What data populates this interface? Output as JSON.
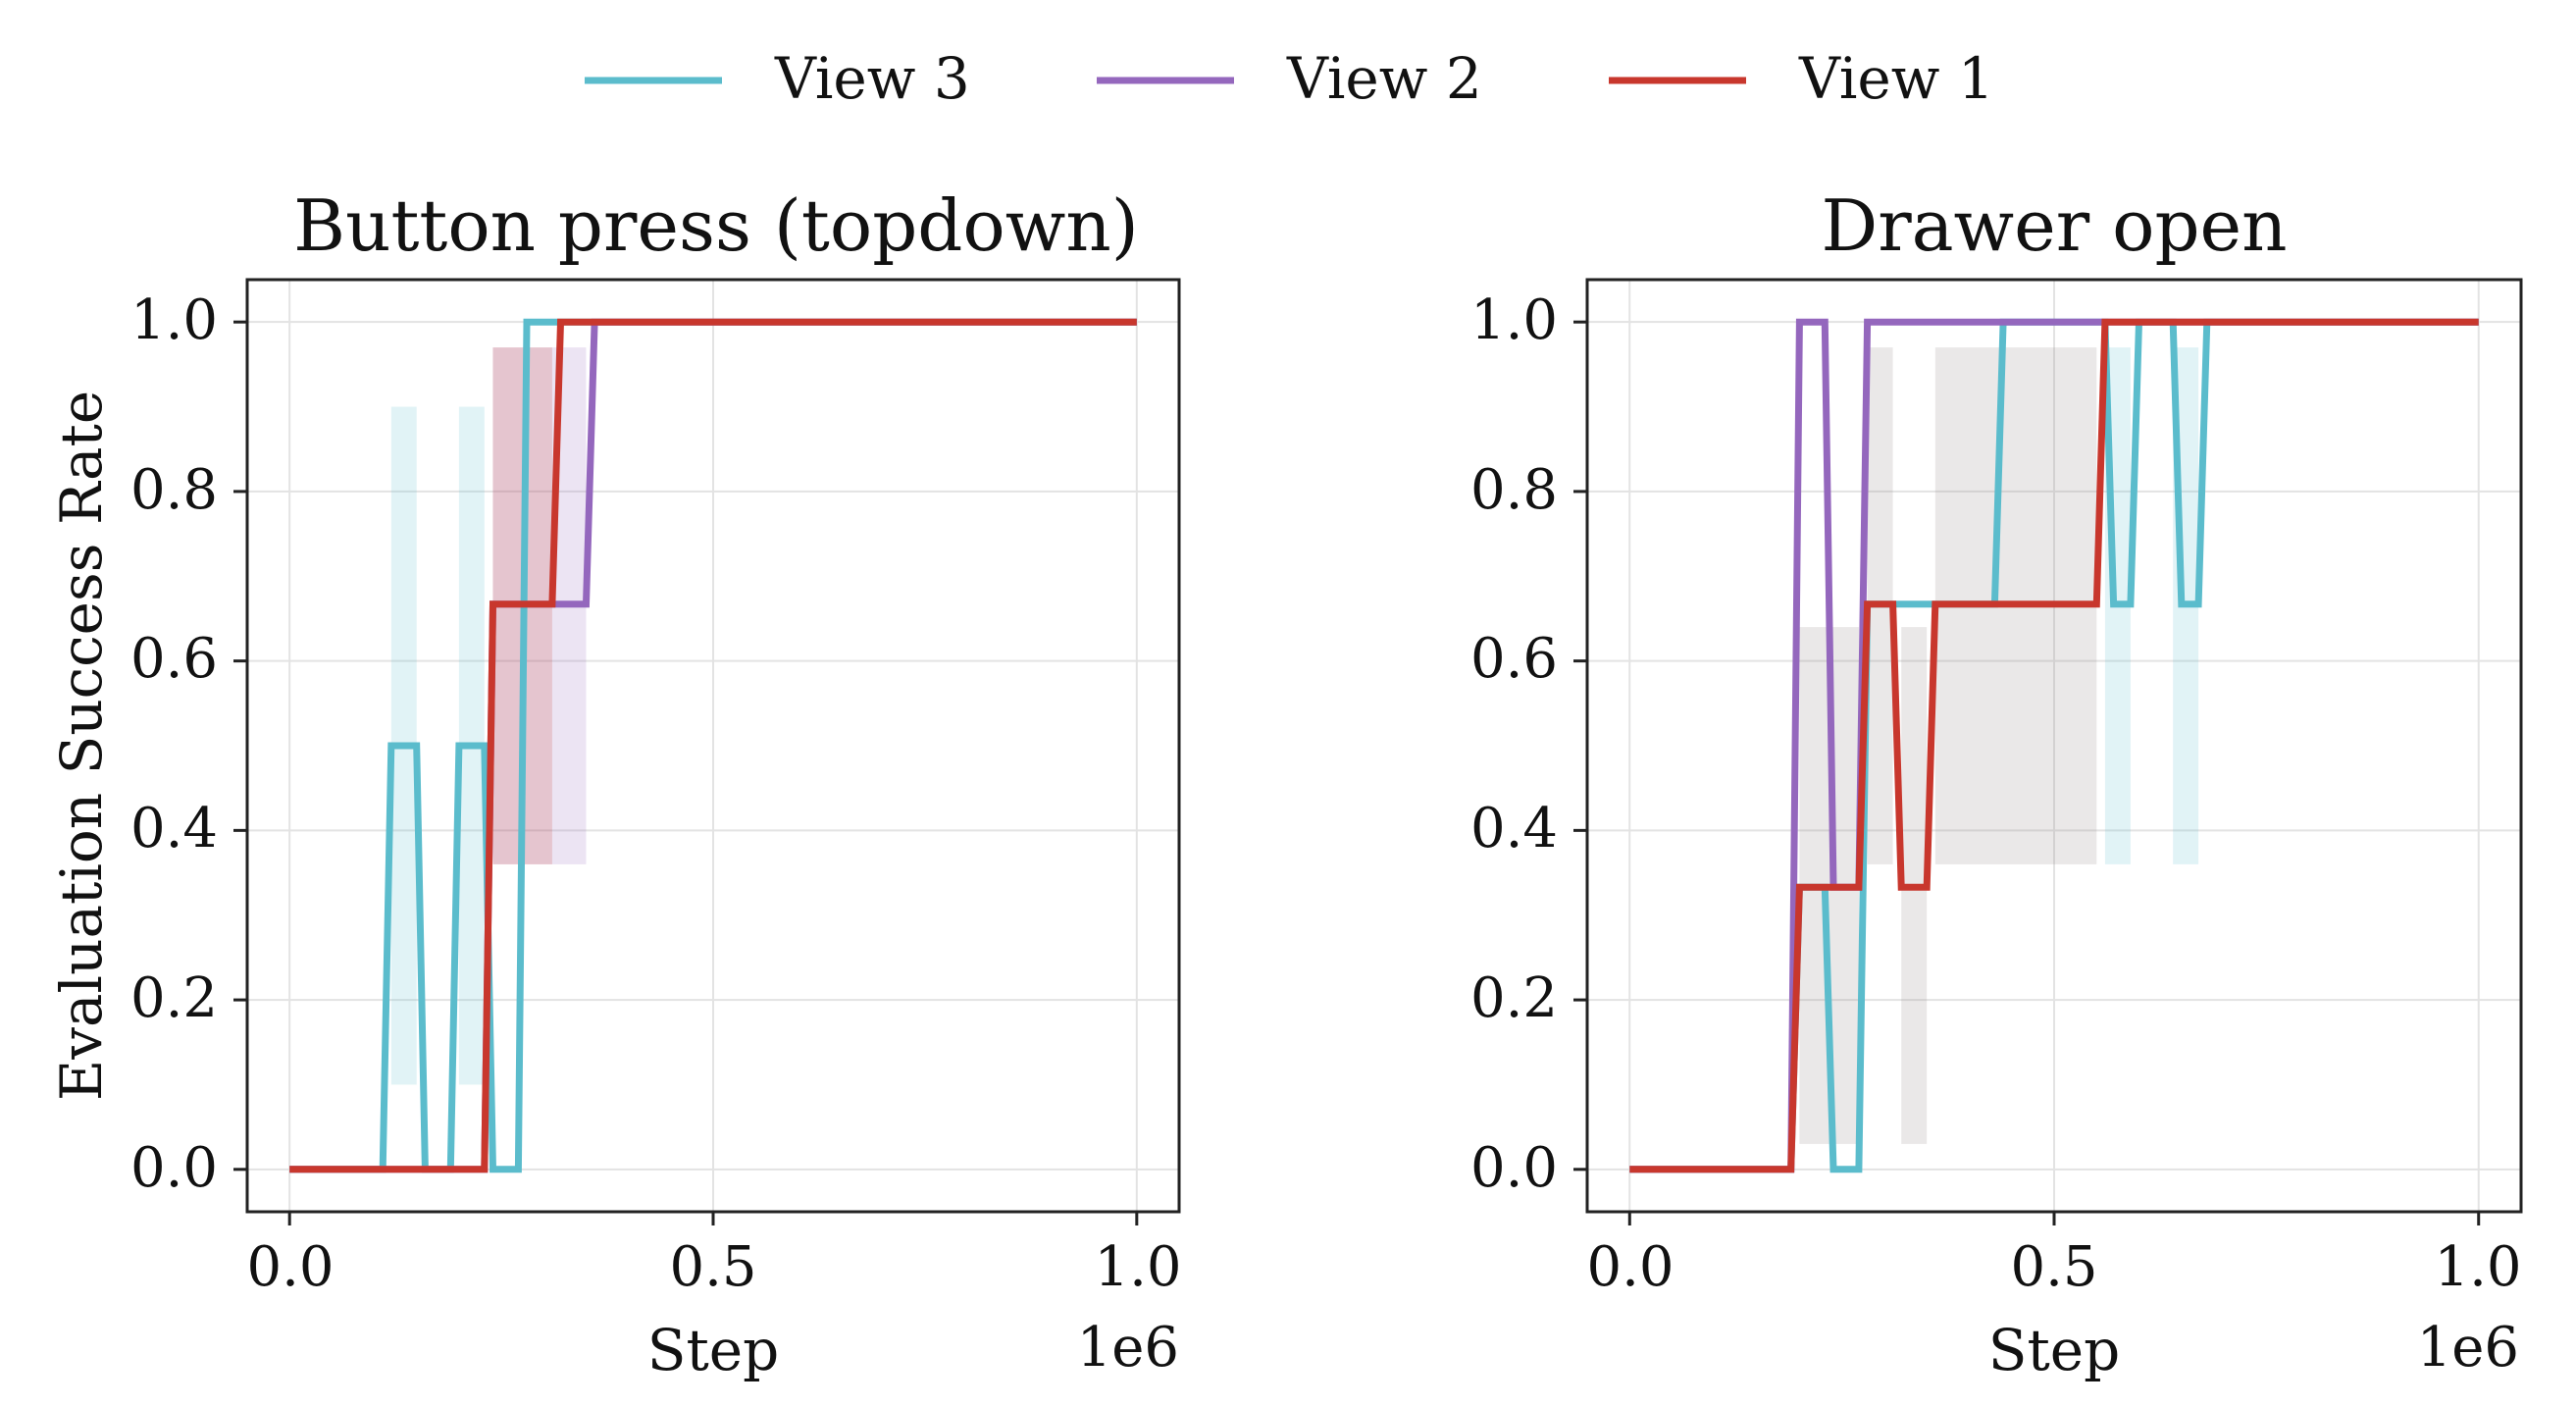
{
  "legend": {
    "position": "top-center",
    "items": [
      {
        "label": "View 3",
        "color": "#5bbccc"
      },
      {
        "label": "View 2",
        "color": "#9467bd"
      },
      {
        "label": "View 1",
        "color": "#c8372d"
      }
    ]
  },
  "chart_data": [
    {
      "type": "line",
      "title": "Button press (topdown)",
      "xlabel": "Step",
      "ylabel": "Evaluation Success Rate",
      "x_offset_label": "1e6",
      "xlim": [
        -0.05,
        1.05
      ],
      "ylim": [
        -0.05,
        1.05
      ],
      "xticks": [
        0.0,
        0.5,
        1.0
      ],
      "xtick_labels": [
        "0.0",
        "0.5",
        "1.0"
      ],
      "yticks": [
        0.0,
        0.2,
        0.4,
        0.6,
        0.8,
        1.0
      ],
      "ytick_labels": [
        "0.0",
        "0.2",
        "0.4",
        "0.6",
        "0.8",
        "1.0"
      ],
      "grid": true,
      "series": [
        {
          "name": "View 3",
          "color": "#5bbccc",
          "x": [
            0.0,
            0.11,
            0.12,
            0.15,
            0.16,
            0.19,
            0.2,
            0.23,
            0.24,
            0.27,
            0.28,
            1.0
          ],
          "y": [
            0.0,
            0.0,
            0.5,
            0.5,
            0.0,
            0.0,
            0.5,
            0.5,
            0.0,
            0.0,
            1.0,
            1.0
          ],
          "band": [
            {
              "x0": 0.12,
              "x1": 0.15,
              "low": 0.1,
              "high": 0.9
            },
            {
              "x0": 0.2,
              "x1": 0.23,
              "low": 0.1,
              "high": 0.9
            }
          ]
        },
        {
          "name": "View 2",
          "color": "#9467bd",
          "x": [
            0.0,
            0.23,
            0.24,
            0.35,
            0.36,
            1.0
          ],
          "y": [
            0.0,
            0.0,
            0.667,
            0.667,
            1.0,
            1.0
          ],
          "band": [
            {
              "x0": 0.24,
              "x1": 0.35,
              "low": 0.36,
              "high": 0.97
            }
          ]
        },
        {
          "name": "View 1",
          "color": "#c8372d",
          "x": [
            0.0,
            0.23,
            0.24,
            0.31,
            0.32,
            1.0
          ],
          "y": [
            0.0,
            0.0,
            0.667,
            0.667,
            1.0,
            1.0
          ],
          "band": [
            {
              "x0": 0.24,
              "x1": 0.31,
              "low": 0.36,
              "high": 0.97
            }
          ]
        }
      ]
    },
    {
      "type": "line",
      "title": "Drawer open",
      "xlabel": "Step",
      "ylabel": "",
      "x_offset_label": "1e6",
      "xlim": [
        -0.05,
        1.05
      ],
      "ylim": [
        -0.05,
        1.05
      ],
      "xticks": [
        0.0,
        0.5,
        1.0
      ],
      "xtick_labels": [
        "0.0",
        "0.5",
        "1.0"
      ],
      "yticks": [
        0.0,
        0.2,
        0.4,
        0.6,
        0.8,
        1.0
      ],
      "ytick_labels": [
        "0.0",
        "0.2",
        "0.4",
        "0.6",
        "0.8",
        "1.0"
      ],
      "grid": true,
      "series": [
        {
          "name": "View 3",
          "color": "#5bbccc",
          "x": [
            0.0,
            0.19,
            0.2,
            0.23,
            0.24,
            0.27,
            0.28,
            0.43,
            0.44,
            0.56,
            0.57,
            0.59,
            0.6,
            0.64,
            0.65,
            0.67,
            0.68,
            1.0
          ],
          "y": [
            0.0,
            0.0,
            0.333,
            0.333,
            0.0,
            0.0,
            0.667,
            0.667,
            1.0,
            1.0,
            0.667,
            0.667,
            1.0,
            1.0,
            0.667,
            0.667,
            1.0,
            1.0
          ],
          "band": [
            {
              "x0": 0.56,
              "x1": 0.59,
              "low": 0.36,
              "high": 0.97
            },
            {
              "x0": 0.64,
              "x1": 0.67,
              "low": 0.36,
              "high": 0.97
            }
          ]
        },
        {
          "name": "View 2",
          "color": "#9467bd",
          "x": [
            0.0,
            0.19,
            0.2,
            0.23,
            0.24,
            0.27,
            0.28,
            0.55,
            0.56,
            1.0
          ],
          "y": [
            0.0,
            0.0,
            1.0,
            1.0,
            0.333,
            0.333,
            1.0,
            1.0,
            1.0,
            1.0
          ],
          "band": []
        },
        {
          "name": "View 1",
          "color": "#c8372d",
          "x": [
            0.0,
            0.19,
            0.2,
            0.27,
            0.28,
            0.31,
            0.32,
            0.35,
            0.36,
            0.55,
            0.56,
            1.0
          ],
          "y": [
            0.0,
            0.0,
            0.333,
            0.333,
            0.667,
            0.667,
            0.333,
            0.333,
            0.667,
            0.667,
            1.0,
            1.0
          ],
          "band": [
            {
              "x0": 0.2,
              "x1": 0.27,
              "low": 0.03,
              "high": 0.64
            },
            {
              "x0": 0.28,
              "x1": 0.31,
              "low": 0.36,
              "high": 0.97
            },
            {
              "x0": 0.32,
              "x1": 0.35,
              "low": 0.03,
              "high": 0.64
            },
            {
              "x0": 0.36,
              "x1": 0.43,
              "low": 0.36,
              "high": 0.97
            },
            {
              "x0": 0.43,
              "x1": 0.55,
              "low": 0.36,
              "high": 0.97
            }
          ]
        }
      ]
    }
  ]
}
